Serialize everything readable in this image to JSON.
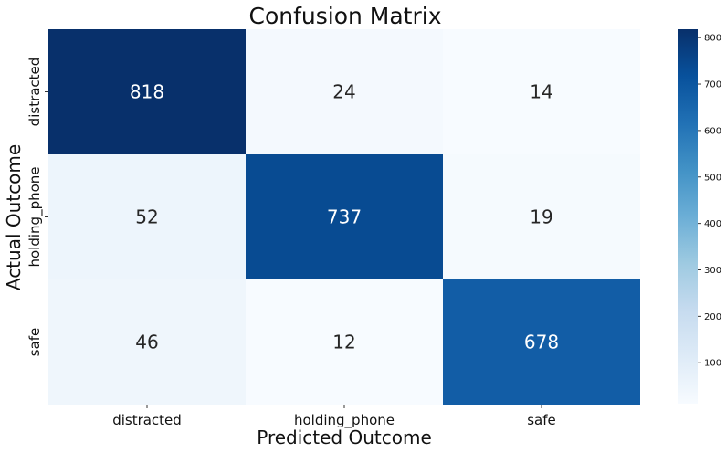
{
  "chart_data": {
    "type": "heatmap",
    "title": "Confusion Matrix",
    "xlabel": "Predicted Outcome",
    "ylabel": "Actual Outcome",
    "x_categories": [
      "distracted",
      "holding_phone",
      "safe"
    ],
    "y_categories": [
      "distracted",
      "holding_phone",
      "safe"
    ],
    "values": [
      [
        818,
        24,
        14
      ],
      [
        52,
        737,
        19
      ],
      [
        46,
        12,
        678
      ]
    ],
    "colormap": "Blues",
    "colorbar": {
      "range": [
        12,
        818
      ],
      "ticks": [
        100,
        200,
        300,
        400,
        500,
        600,
        700,
        800
      ]
    },
    "colors": {
      "low": "#f7fbff",
      "high": "#08306b",
      "text_dark": "#262626",
      "text_light": "#ffffff"
    }
  }
}
